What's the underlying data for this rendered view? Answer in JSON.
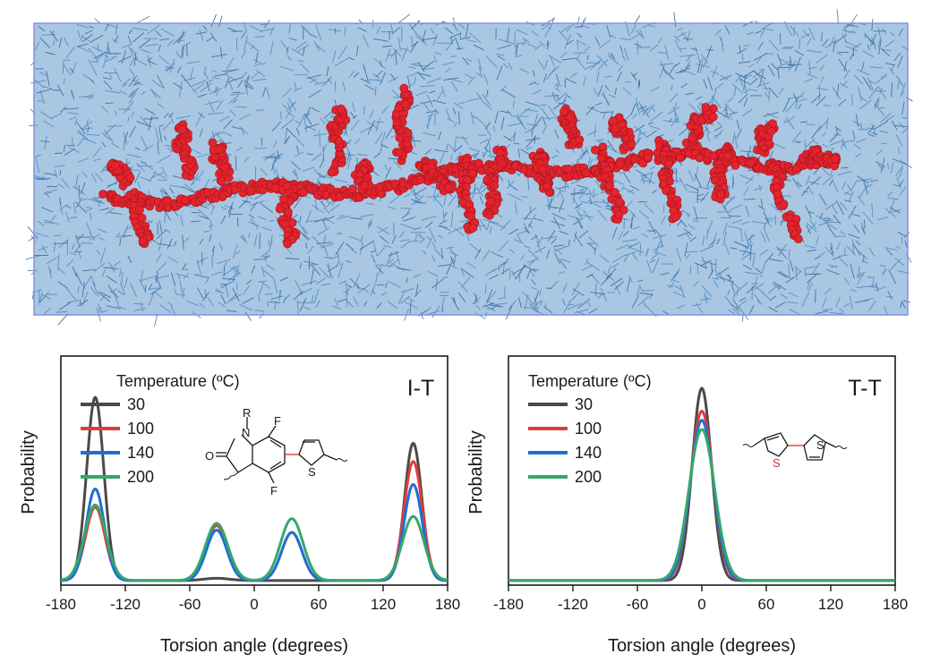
{
  "colors": {
    "solvent": "#5f93c4",
    "solvent_dark": "#3e73a6",
    "polymer": "#e3232d",
    "polymer_highlight": "#ff8c8c",
    "box_edge": "#8a8fe0",
    "sulfur_bond": "#d42a2a"
  },
  "simulation": {
    "description_icon": "polymer-chain-in-solvent-box"
  },
  "chart_data": [
    {
      "id": "it",
      "type": "line",
      "panel_label": "I-T",
      "xlabel": "Torsion angle (degrees)",
      "ylabel": "Probability",
      "xlim": [
        -180,
        180
      ],
      "ylim": [
        0,
        1.0
      ],
      "xticks": [
        -180,
        -120,
        -60,
        0,
        60,
        120,
        180
      ],
      "xtick_labels": [
        "-180",
        "-120",
        "-60",
        "0",
        "60",
        "120",
        "180"
      ],
      "legend_title": "Temperature (ºC)",
      "legend_position": "top-left",
      "grid": false,
      "molecule_labels": {
        "r": "R",
        "n": "N",
        "o": "O",
        "f1": "F",
        "f2": "F",
        "s": "S"
      },
      "series": [
        {
          "name": "30",
          "color": "#4a4a4a",
          "peaks": [
            [
              -148,
              0.8,
              8
            ],
            [
              148,
              0.6,
              8
            ],
            [
              -35,
              0.01,
              12
            ],
            [
              35,
              0.0,
              12
            ]
          ]
        },
        {
          "name": "100",
          "color": "#e03c3c",
          "peaks": [
            [
              -148,
              0.32,
              9
            ],
            [
              148,
              0.52,
              8.5
            ],
            [
              -35,
              0.24,
              9.5
            ],
            [
              35,
              0.21,
              9.5
            ]
          ]
        },
        {
          "name": "140",
          "color": "#1f6fd4",
          "peaks": [
            [
              -148,
              0.4,
              8.5
            ],
            [
              148,
              0.42,
              8.5
            ],
            [
              -35,
              0.22,
              9.5
            ],
            [
              35,
              0.21,
              9.5
            ]
          ]
        },
        {
          "name": "200",
          "color": "#35a86a",
          "peaks": [
            [
              -148,
              0.33,
              10
            ],
            [
              148,
              0.28,
              10
            ],
            [
              -35,
              0.25,
              10.5
            ],
            [
              35,
              0.27,
              10.5
            ]
          ]
        }
      ]
    },
    {
      "id": "tt",
      "type": "line",
      "panel_label": "T-T",
      "xlabel": "Torsion angle (degrees)",
      "ylabel": "Probability",
      "xlim": [
        -180,
        180
      ],
      "ylim": [
        0,
        1.0
      ],
      "xticks": [
        -180,
        -120,
        -60,
        0,
        60,
        120,
        180
      ],
      "xtick_labels": [
        "-180",
        "-120",
        "-60",
        "0",
        "60",
        "120",
        "180"
      ],
      "legend_title": "Temperature (ºC)",
      "legend_position": "top-left",
      "grid": false,
      "molecule_labels": {
        "s1": "S",
        "s2": "S"
      },
      "series": [
        {
          "name": "30",
          "color": "#4a4a4a",
          "baseline": 0.02,
          "peaks": [
            [
              0,
              0.84,
              9
            ]
          ]
        },
        {
          "name": "100",
          "color": "#e03c3c",
          "baseline": 0.02,
          "peaks": [
            [
              0,
              0.74,
              10.5
            ]
          ]
        },
        {
          "name": "140",
          "color": "#1f6fd4",
          "baseline": 0.02,
          "peaks": [
            [
              0,
              0.7,
              11
            ]
          ]
        },
        {
          "name": "200",
          "color": "#35a86a",
          "baseline": 0.02,
          "peaks": [
            [
              0,
              0.66,
              12
            ]
          ]
        }
      ]
    }
  ]
}
